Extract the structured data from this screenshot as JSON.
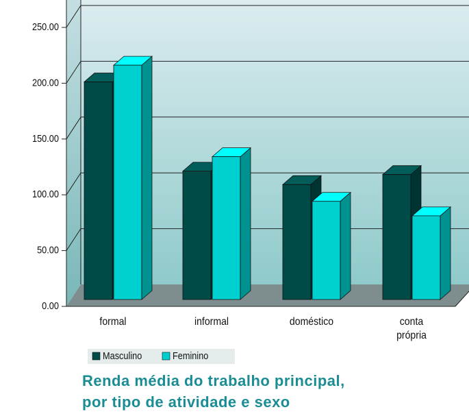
{
  "chart_data": {
    "type": "bar",
    "title": "Renda média do trabalho principal,\npor tipo de atividade e sexo",
    "categories": [
      "formal",
      "informal",
      "doméstico",
      "conta\nprópria"
    ],
    "series": [
      {
        "name": "Masculino",
        "color": "#004a47",
        "values": [
          195,
          115,
          103,
          112
        ]
      },
      {
        "name": "Feminino",
        "color": "#00cfcf",
        "values": [
          210,
          128,
          88,
          75
        ]
      }
    ],
    "ylim": [
      0,
      250
    ],
    "yticks": [
      {
        "value": 0,
        "label": "0.00"
      },
      {
        "value": 50,
        "label": "50.00"
      },
      {
        "value": 100,
        "label": "100.00"
      },
      {
        "value": 150,
        "label": "150.00"
      },
      {
        "value": 200,
        "label": "200.00"
      },
      {
        "value": 250,
        "label": "250.00"
      }
    ],
    "grid": true,
    "legend": "bottom"
  }
}
